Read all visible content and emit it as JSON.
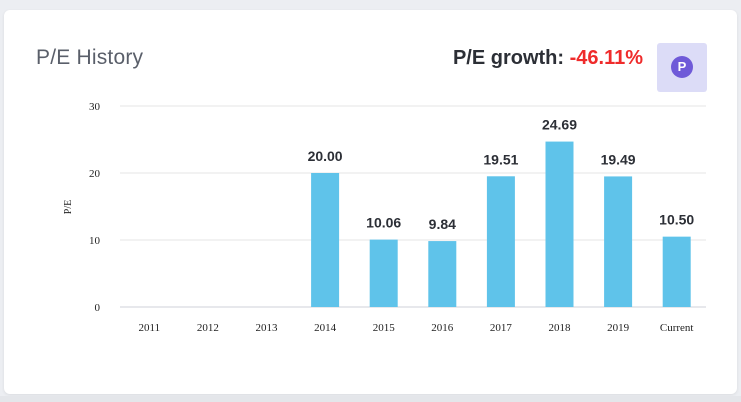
{
  "header": {
    "title": "P/E History",
    "growth_label": "P/E growth:",
    "growth_value": "-46.11%",
    "badge_letter": "P"
  },
  "colors": {
    "bar": "#5fc3ea",
    "growth_negative": "#ef2b2b",
    "badge_bg": "#dcdcf7",
    "badge_circle": "#6f5ad8",
    "grid": "#e6e6e6"
  },
  "chart_data": {
    "type": "bar",
    "title": "P/E History",
    "ylabel": "P/E",
    "xlabel": "",
    "ylim": [
      0,
      30
    ],
    "yticks": [
      0,
      10,
      20,
      30
    ],
    "grid": true,
    "categories": [
      "2011",
      "2012",
      "2013",
      "2014",
      "2015",
      "2016",
      "2017",
      "2018",
      "2019",
      "Current"
    ],
    "values": [
      null,
      null,
      null,
      20.0,
      10.06,
      9.84,
      19.51,
      24.69,
      19.49,
      10.5
    ],
    "data_labels": [
      "",
      "",
      "",
      "20.00",
      "10.06",
      "9.84",
      "19.51",
      "24.69",
      "19.49",
      "10.50"
    ]
  }
}
